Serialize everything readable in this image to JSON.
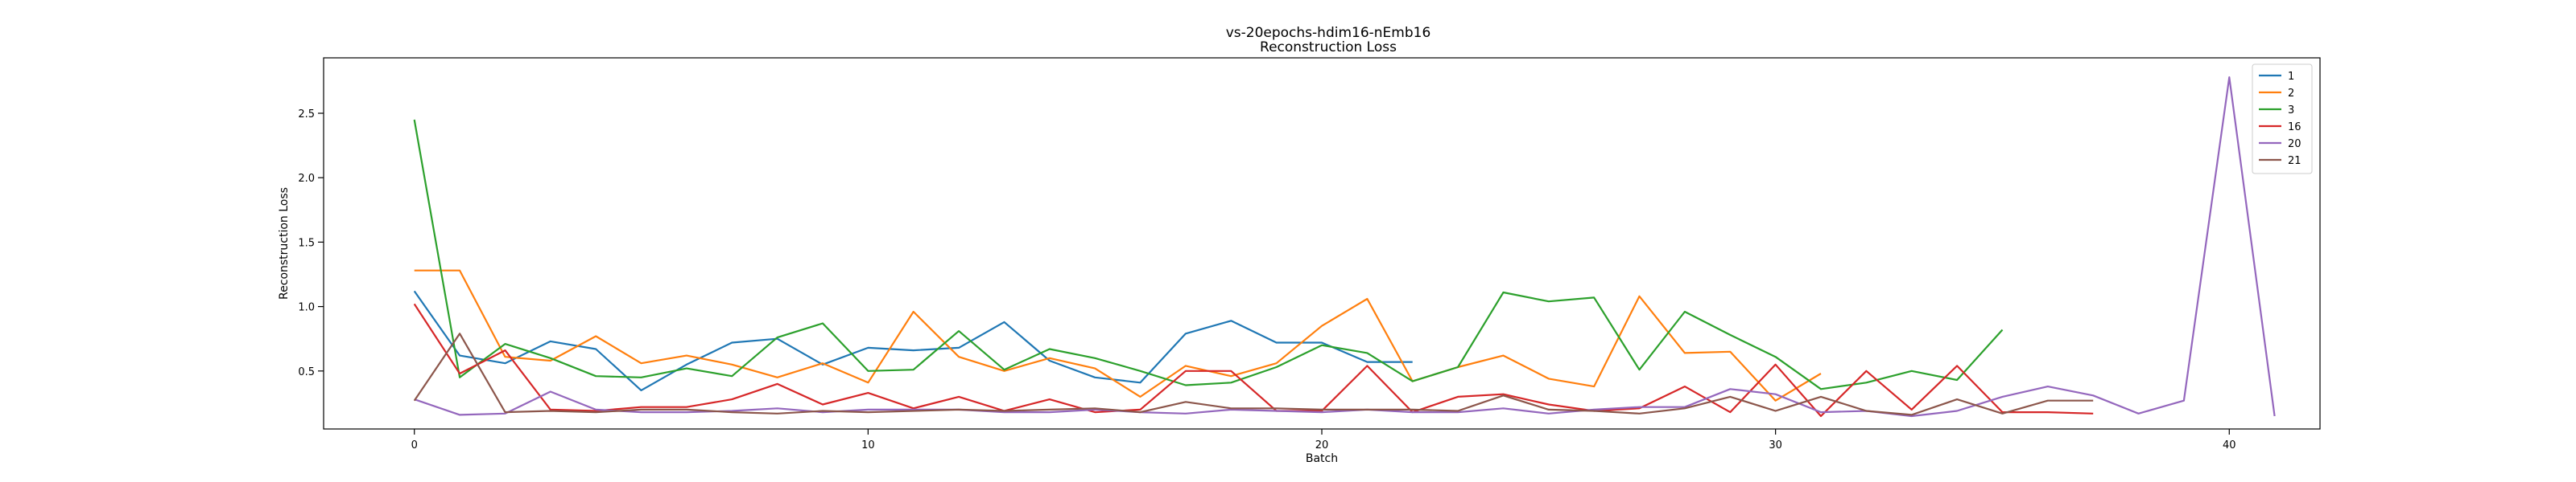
{
  "chart_data": {
    "type": "line",
    "title": "vs-20epochs-hdim16-nEmb16",
    "subtitle": "Reconstruction Loss",
    "xlabel": "Batch",
    "ylabel": "Reconstruction Loss",
    "xlim": [
      -2,
      42
    ],
    "ylim": [
      0.05,
      2.93
    ],
    "xticks": [
      0,
      10,
      20,
      30,
      40
    ],
    "yticks": [
      0.5,
      1.0,
      1.5,
      2.0,
      2.5
    ],
    "xtick_labels": [
      "0",
      "10",
      "20",
      "30",
      "40"
    ],
    "ytick_labels": [
      "0.5",
      "1.0",
      "1.5",
      "2.0",
      "2.5"
    ],
    "grid": false,
    "legend_position": "top-right",
    "series": [
      {
        "name": "1",
        "color": "#1f77b4",
        "x": [
          0,
          1,
          2,
          3,
          4,
          5,
          6,
          7,
          8,
          9,
          10,
          11,
          12,
          13,
          14,
          15,
          16,
          17,
          18,
          19,
          20,
          21,
          22
        ],
        "values": [
          1.12,
          0.62,
          0.56,
          0.73,
          0.67,
          0.35,
          0.55,
          0.72,
          0.75,
          0.55,
          0.68,
          0.66,
          0.68,
          0.88,
          0.58,
          0.45,
          0.41,
          0.79,
          0.89,
          0.72,
          0.72,
          0.57,
          0.57
        ]
      },
      {
        "name": "2",
        "color": "#ff7f0e",
        "x": [
          0,
          1,
          2,
          3,
          4,
          5,
          6,
          7,
          8,
          9,
          10,
          11,
          12,
          13,
          14,
          15,
          16,
          17,
          18,
          19,
          20,
          21,
          22,
          23,
          24,
          25,
          26,
          27,
          28,
          29,
          30,
          31
        ],
        "values": [
          1.28,
          1.28,
          0.61,
          0.58,
          0.77,
          0.56,
          0.62,
          0.55,
          0.45,
          0.56,
          0.41,
          0.96,
          0.61,
          0.5,
          0.6,
          0.52,
          0.3,
          0.54,
          0.46,
          0.56,
          0.85,
          1.06,
          0.42,
          0.53,
          0.62,
          0.44,
          0.38,
          1.08,
          0.64,
          0.65,
          0.27,
          0.48
        ]
      },
      {
        "name": "3",
        "color": "#2ca02c",
        "x": [
          0,
          1,
          2,
          3,
          4,
          5,
          6,
          7,
          8,
          9,
          10,
          11,
          12,
          13,
          14,
          15,
          16,
          17,
          18,
          19,
          20,
          21,
          22,
          23,
          24,
          25,
          26,
          27,
          28,
          29,
          30,
          31,
          32,
          33,
          34,
          35
        ],
        "values": [
          2.45,
          0.45,
          0.71,
          0.6,
          0.46,
          0.45,
          0.52,
          0.46,
          0.76,
          0.87,
          0.5,
          0.51,
          0.81,
          0.51,
          0.67,
          0.6,
          0.5,
          0.39,
          0.41,
          0.53,
          0.7,
          0.64,
          0.42,
          0.53,
          1.11,
          1.04,
          1.07,
          0.51,
          0.96,
          0.78,
          0.61,
          0.36,
          0.41,
          0.5,
          0.43,
          0.82
        ]
      },
      {
        "name": "16",
        "color": "#d62728",
        "x": [
          0,
          1,
          2,
          3,
          4,
          5,
          6,
          7,
          8,
          9,
          10,
          11,
          12,
          13,
          14,
          15,
          16,
          17,
          18,
          19,
          20,
          21,
          22,
          23,
          24,
          25,
          26,
          27,
          28,
          29,
          30,
          31,
          32,
          33,
          34,
          35,
          36,
          37
        ],
        "values": [
          1.02,
          0.48,
          0.66,
          0.2,
          0.19,
          0.22,
          0.22,
          0.28,
          0.4,
          0.24,
          0.33,
          0.21,
          0.3,
          0.19,
          0.28,
          0.18,
          0.2,
          0.5,
          0.5,
          0.19,
          0.19,
          0.54,
          0.18,
          0.3,
          0.32,
          0.24,
          0.19,
          0.21,
          0.38,
          0.18,
          0.55,
          0.15,
          0.5,
          0.2,
          0.54,
          0.18,
          0.18,
          0.17
        ]
      },
      {
        "name": "20",
        "color": "#9467bd",
        "x": [
          0,
          1,
          2,
          3,
          4,
          5,
          6,
          7,
          8,
          9,
          10,
          11,
          12,
          13,
          14,
          15,
          16,
          17,
          18,
          19,
          20,
          21,
          22,
          23,
          24,
          25,
          26,
          27,
          28,
          29,
          30,
          31,
          32,
          33,
          34,
          35,
          36,
          37,
          38,
          39,
          40,
          41
        ],
        "values": [
          0.28,
          0.16,
          0.17,
          0.34,
          0.2,
          0.18,
          0.18,
          0.19,
          0.21,
          0.18,
          0.2,
          0.2,
          0.2,
          0.18,
          0.18,
          0.2,
          0.18,
          0.17,
          0.2,
          0.19,
          0.18,
          0.2,
          0.18,
          0.18,
          0.21,
          0.17,
          0.2,
          0.22,
          0.22,
          0.36,
          0.32,
          0.18,
          0.19,
          0.15,
          0.19,
          0.3,
          0.38,
          0.31,
          0.17,
          0.27,
          2.78,
          0.15
        ]
      },
      {
        "name": "21",
        "color": "#8c564b",
        "x": [
          0,
          1,
          2,
          3,
          4,
          5,
          6,
          7,
          8,
          9,
          10,
          11,
          12,
          13,
          14,
          15,
          16,
          17,
          18,
          19,
          20,
          21,
          22,
          23,
          24,
          25,
          26,
          27,
          28,
          29,
          30,
          31,
          32,
          33,
          34,
          35,
          36,
          37
        ],
        "values": [
          0.27,
          0.79,
          0.18,
          0.19,
          0.18,
          0.2,
          0.2,
          0.18,
          0.17,
          0.19,
          0.18,
          0.19,
          0.2,
          0.19,
          0.2,
          0.21,
          0.18,
          0.26,
          0.21,
          0.21,
          0.2,
          0.2,
          0.2,
          0.19,
          0.31,
          0.2,
          0.19,
          0.17,
          0.21,
          0.3,
          0.19,
          0.3,
          0.19,
          0.16,
          0.28,
          0.17,
          0.27,
          0.27
        ]
      }
    ]
  }
}
